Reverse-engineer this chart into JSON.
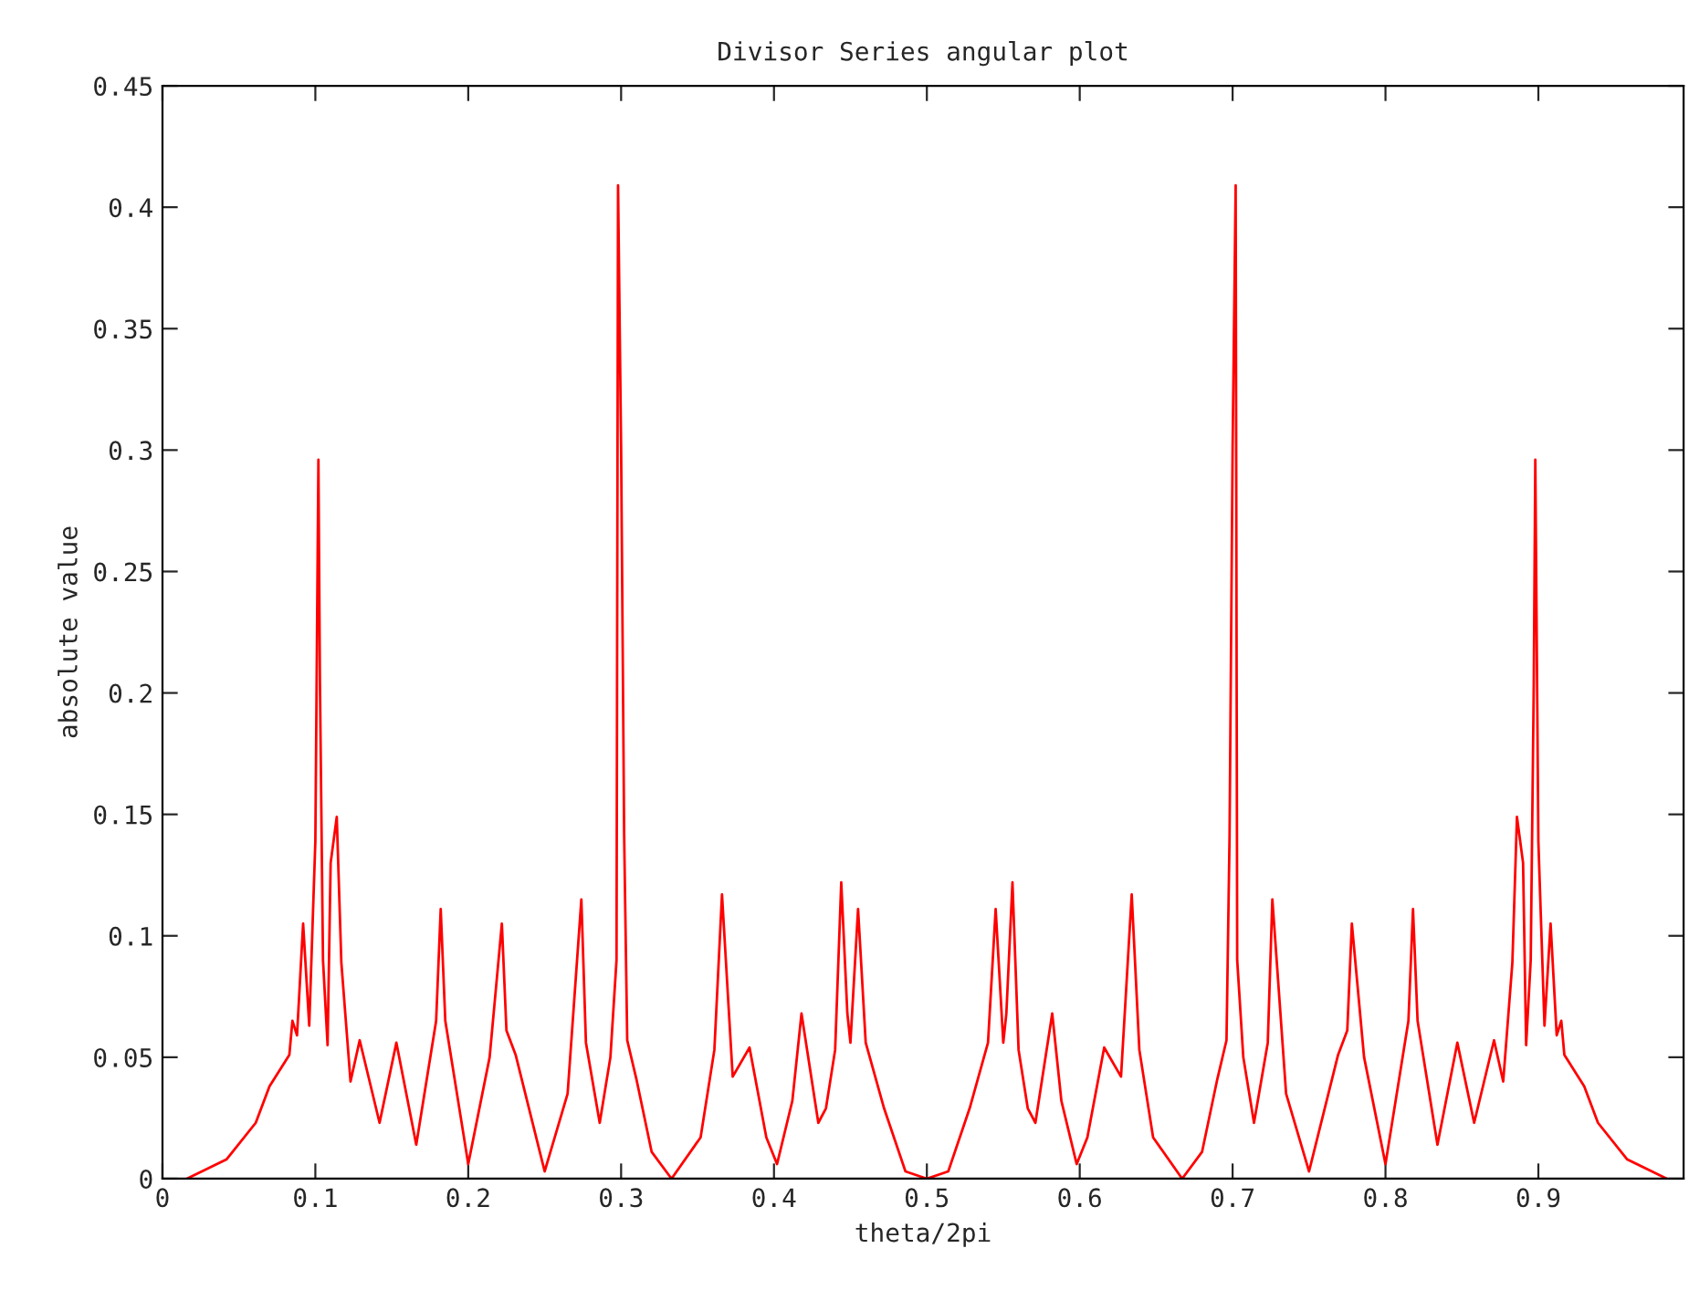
{
  "chart_data": {
    "type": "line",
    "title": "Divisor Series angular plot",
    "xlabel": "theta/2pi",
    "ylabel": "absolute value",
    "xlim": [
      0,
      0.995
    ],
    "xticks": [
      0,
      0.1,
      0.2,
      0.3,
      0.4,
      0.5,
      0.6,
      0.7,
      0.8,
      0.9
    ],
    "ylim": [
      0,
      0.45
    ],
    "yticks": [
      0,
      0.05,
      0.1,
      0.15,
      0.2,
      0.25,
      0.3,
      0.35,
      0.4,
      0.45
    ],
    "grid": false,
    "series": [
      {
        "color": "#ff0000",
        "x": [
          0.016,
          0.042,
          0.061,
          0.07,
          0.083,
          0.085,
          0.088,
          0.092,
          0.096,
          0.1,
          0.102,
          0.103,
          0.105,
          0.108,
          0.11,
          0.114,
          0.117,
          0.123,
          0.129,
          0.142,
          0.153,
          0.166,
          0.179,
          0.182,
          0.185,
          0.2,
          0.214,
          0.222,
          0.225,
          0.231,
          0.25,
          0.265,
          0.274,
          0.277,
          0.286,
          0.293,
          0.297,
          0.298,
          0.3,
          0.302,
          0.304,
          0.31,
          0.32,
          0.333,
          0.352,
          0.361,
          0.366,
          0.37,
          0.373,
          0.384,
          0.395,
          0.402,
          0.412,
          0.418,
          0.429,
          0.434,
          0.44,
          0.444,
          0.448,
          0.45,
          0.455,
          0.46,
          0.472,
          0.486,
          0.5,
          0.514,
          0.528,
          0.54,
          0.545,
          0.55,
          0.552,
          0.556,
          0.56,
          0.566,
          0.571,
          0.582,
          0.588,
          0.598,
          0.605,
          0.616,
          0.627,
          0.63,
          0.634,
          0.639,
          0.648,
          0.667,
          0.68,
          0.69,
          0.696,
          0.698,
          0.7,
          0.702,
          0.703,
          0.707,
          0.714,
          0.723,
          0.726,
          0.735,
          0.75,
          0.769,
          0.775,
          0.778,
          0.786,
          0.8,
          0.815,
          0.818,
          0.821,
          0.834,
          0.847,
          0.858,
          0.871,
          0.877,
          0.883,
          0.886,
          0.89,
          0.892,
          0.895,
          0.897,
          0.898,
          0.9,
          0.904,
          0.908,
          0.912,
          0.915,
          0.917,
          0.93,
          0.939,
          0.958,
          0.984
        ],
        "values": [
          0,
          0.008,
          0.023,
          0.038,
          0.051,
          0.065,
          0.059,
          0.105,
          0.063,
          0.139,
          0.296,
          0.204,
          0.09,
          0.055,
          0.13,
          0.149,
          0.089,
          0.04,
          0.057,
          0.023,
          0.056,
          0.014,
          0.065,
          0.111,
          0.065,
          0.006,
          0.05,
          0.105,
          0.061,
          0.051,
          0.003,
          0.035,
          0.115,
          0.056,
          0.023,
          0.05,
          0.09,
          0.409,
          0.301,
          0.141,
          0.057,
          0.041,
          0.011,
          0,
          0.017,
          0.053,
          0.117,
          0.074,
          0.042,
          0.054,
          0.017,
          0.006,
          0.032,
          0.068,
          0.023,
          0.029,
          0.053,
          0.122,
          0.068,
          0.056,
          0.111,
          0.056,
          0.029,
          0.003,
          0,
          0.003,
          0.029,
          0.056,
          0.111,
          0.056,
          0.068,
          0.122,
          0.053,
          0.029,
          0.023,
          0.068,
          0.032,
          0.006,
          0.017,
          0.054,
          0.042,
          0.074,
          0.117,
          0.053,
          0.017,
          0,
          0.011,
          0.041,
          0.057,
          0.141,
          0.301,
          0.409,
          0.09,
          0.05,
          0.023,
          0.056,
          0.115,
          0.035,
          0.003,
          0.051,
          0.061,
          0.105,
          0.05,
          0.006,
          0.065,
          0.111,
          0.065,
          0.014,
          0.056,
          0.023,
          0.057,
          0.04,
          0.089,
          0.149,
          0.13,
          0.055,
          0.09,
          0.204,
          0.296,
          0.139,
          0.063,
          0.105,
          0.059,
          0.065,
          0.051,
          0.038,
          0.023,
          0.008,
          0
        ]
      }
    ]
  }
}
